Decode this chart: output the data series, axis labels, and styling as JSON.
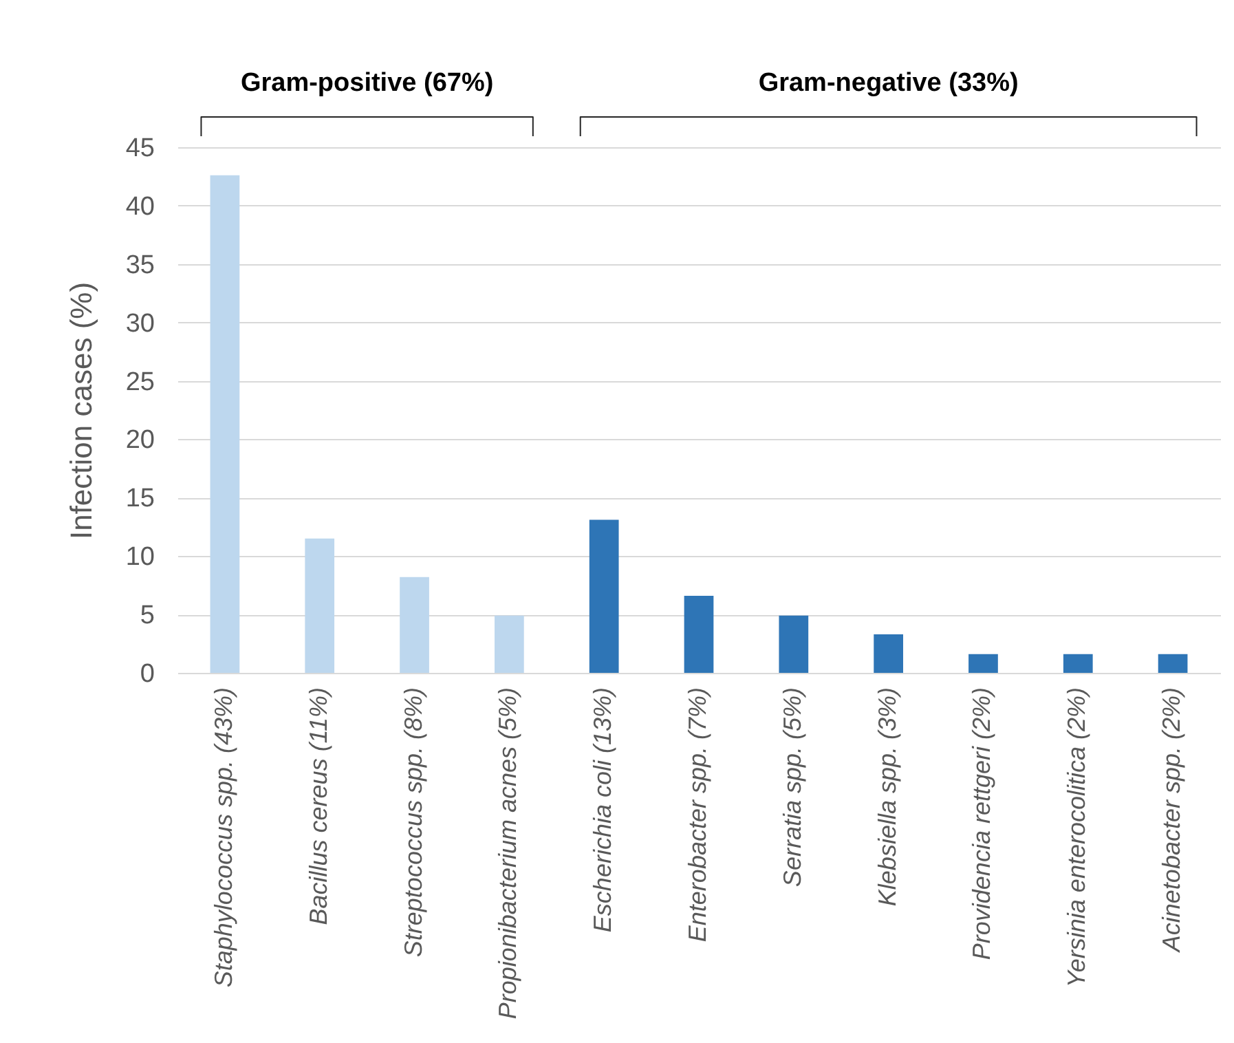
{
  "chart_data": {
    "type": "bar",
    "ylabel": "Infection cases (%)",
    "categories": [
      "Staphylococcus spp. (43%)",
      "Bacillus cereus (11%)",
      "Streptococcus spp. (8%)",
      "Propionibacterium acnes (5%)",
      "Escherichia coli (13%)",
      "Enterobacter spp. (7%)",
      "Serratia spp. (5%)",
      "Klebsiella spp. (3%)",
      "Providencia rettgeri (2%)",
      "Yersinia enterocolitica (2%)",
      "Acinetobacter spp. (2%)"
    ],
    "values": [
      42.6,
      11.5,
      8.2,
      4.9,
      13.1,
      6.6,
      4.9,
      3.3,
      1.6,
      1.6,
      1.6
    ],
    "colors": [
      "#bdd7ee",
      "#bdd7ee",
      "#bdd7ee",
      "#bdd7ee",
      "#2e75b6",
      "#2e75b6",
      "#2e75b6",
      "#2e75b6",
      "#2e75b6",
      "#2e75b6",
      "#2e75b6"
    ],
    "ylim": [
      0,
      45
    ],
    "yticks": [
      0,
      5,
      10,
      15,
      20,
      25,
      30,
      35,
      40,
      45
    ],
    "grid": "y",
    "annotations": [
      "Gram-positive (67%)",
      "Gram-negative (33%)"
    ]
  }
}
